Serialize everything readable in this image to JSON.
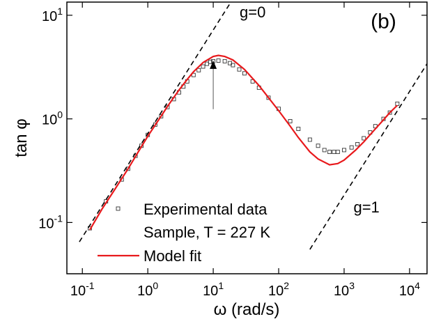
{
  "chart_data": {
    "type": "scatter",
    "xlabel": "ω (rad/s)",
    "ylabel": "tan φ",
    "xlog": true,
    "ylog": true,
    "xlim": [
      0.058,
      18500
    ],
    "ylim": [
      0.032,
      13.4
    ],
    "xticks": [
      {
        "value": 0.1,
        "label": "10^-1"
      },
      {
        "value": 1,
        "label": "10^0"
      },
      {
        "value": 10,
        "label": "10^1"
      },
      {
        "value": 100,
        "label": "10^2"
      },
      {
        "value": 1000,
        "label": "10^3"
      },
      {
        "value": 10000,
        "label": "10^4"
      }
    ],
    "yticks": [
      {
        "value": 0.1,
        "label": "10^-1"
      },
      {
        "value": 1,
        "label": "10^0"
      },
      {
        "value": 10,
        "label": "10^1"
      }
    ],
    "legend_position": "lower left",
    "legend_note": "Sample, T = 227 K",
    "series": [
      {
        "name": "Experimental data",
        "kind": "markers",
        "color": "#333333",
        "x": [
          0.13,
          0.23,
          0.4,
          0.5,
          0.65,
          0.8,
          1.0,
          1.3,
          1.6,
          2.0,
          2.5,
          3.0,
          3.5,
          4.0,
          5.0,
          6.0,
          7.0,
          8.0,
          9.0,
          10,
          12,
          15,
          18,
          20,
          25,
          30,
          40,
          50,
          70,
          100,
          150,
          200,
          300,
          400,
          500,
          600,
          700,
          800,
          1000,
          1300,
          1600,
          2000,
          2500,
          3000,
          4000,
          5000,
          6500
        ],
        "values": [
          0.088,
          0.16,
          0.26,
          0.33,
          0.44,
          0.55,
          0.7,
          0.88,
          1.06,
          1.3,
          1.55,
          1.8,
          2.05,
          2.3,
          2.65,
          2.95,
          3.2,
          3.4,
          3.55,
          3.6,
          3.65,
          3.6,
          3.45,
          3.3,
          3.0,
          2.75,
          2.3,
          2.0,
          1.6,
          1.25,
          0.95,
          0.8,
          0.63,
          0.55,
          0.5,
          0.48,
          0.48,
          0.48,
          0.5,
          0.53,
          0.57,
          0.65,
          0.74,
          0.85,
          1.0,
          1.15,
          1.4
        ]
      },
      {
        "name": "Model fit",
        "kind": "line",
        "color": "#e8191c",
        "x": [
          0.13,
          0.2,
          0.3,
          0.5,
          0.7,
          1.0,
          1.5,
          2.0,
          3.0,
          4.0,
          5.0,
          7.0,
          10,
          12,
          15,
          20,
          30,
          50,
          70,
          100,
          150,
          200,
          300,
          400,
          600,
          800,
          1000,
          1500,
          2000,
          3000,
          4000,
          5000,
          6500
        ],
        "values": [
          0.085,
          0.135,
          0.2,
          0.33,
          0.47,
          0.68,
          1.0,
          1.32,
          1.9,
          2.4,
          2.85,
          3.5,
          4.0,
          4.1,
          4.0,
          3.7,
          3.0,
          2.1,
          1.6,
          1.2,
          0.85,
          0.66,
          0.48,
          0.41,
          0.36,
          0.37,
          0.4,
          0.5,
          0.6,
          0.8,
          0.98,
          1.15,
          1.35
        ]
      },
      {
        "kind": "dashed",
        "color": "#000000",
        "x": [
          0.09,
          18.6
        ],
        "values": [
          0.065,
          13.4
        ]
      },
      {
        "kind": "dashed",
        "color": "#000000",
        "x": [
          300,
          18500
        ],
        "values": [
          0.055,
          3.4
        ]
      }
    ],
    "annotations": [
      {
        "text": "g=0",
        "x": 40,
        "y": 9.5
      },
      {
        "text": "g=1",
        "x": 2200,
        "y": 0.125
      },
      {
        "text": "(b)",
        "x": 4000,
        "y": 7.5
      }
    ],
    "arrow": {
      "x": 10,
      "y_from": 1.24,
      "y_to": 3.66
    }
  }
}
